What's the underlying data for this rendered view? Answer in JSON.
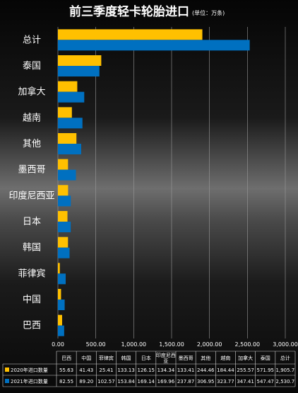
{
  "chart_data": {
    "type": "bar",
    "orientation": "horizontal",
    "title": "前三季度轻卡轮胎进口",
    "subtitle": "(单位：万条)",
    "categories": [
      "总计",
      "泰国",
      "加拿大",
      "越南",
      "其他",
      "墨西哥",
      "印度尼西亚",
      "日本",
      "韩国",
      "菲律宾",
      "中国",
      "巴西"
    ],
    "table_categories": [
      "巴西",
      "中国",
      "菲律宾",
      "韩国",
      "日本",
      "印度尼西亚",
      "墨西哥",
      "其他",
      "越南",
      "加拿大",
      "泰国",
      "总计"
    ],
    "series": [
      {
        "name": "2020年进口数量",
        "color": "#FFC000",
        "values": [
          1905.7,
          571.95,
          255.57,
          184.44,
          244.46,
          133.41,
          134.34,
          126.15,
          133.13,
          25.41,
          41.43,
          55.63
        ],
        "table_values": [
          "55.63",
          "41.43",
          "25.41",
          "133.13",
          "126.15",
          "134.34",
          "133.41",
          "244.46",
          "184.44",
          "255.57",
          "571.95",
          "1,905.7"
        ]
      },
      {
        "name": "2021年进口数量",
        "color": "#0070C0",
        "values": [
          2530.7,
          547.47,
          347.41,
          323.77,
          306.95,
          237.87,
          169.96,
          169.14,
          153.84,
          102.57,
          89.2,
          82.55
        ],
        "table_values": [
          "82.55",
          "89.20",
          "102.57",
          "153.84",
          "169.14",
          "169.96",
          "237.87",
          "306.95",
          "323.77",
          "347.41",
          "547.47",
          "2,530.7"
        ]
      }
    ],
    "xlim": [
      0,
      3000
    ],
    "x_ticks": [
      0,
      500,
      1000,
      1500,
      2000,
      2500,
      3000
    ],
    "x_tick_labels": [
      "0.00",
      "500.00",
      "1,000.00",
      "1,500.00",
      "2,000.00",
      "2,500.00",
      "3,000.00"
    ],
    "grid": true,
    "legend": "bottom (data table)"
  }
}
